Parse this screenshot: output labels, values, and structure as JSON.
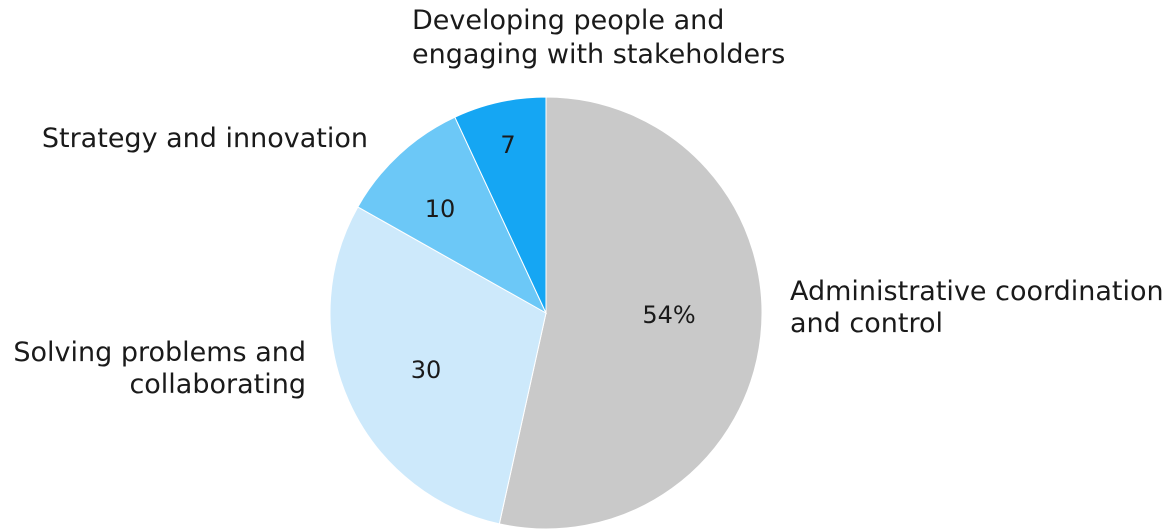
{
  "chart_data": {
    "type": "pie",
    "value_unit": "%",
    "slices": [
      {
        "label": "Administrative coordination and control",
        "label_lines": [
          "Administrative coordination",
          "and control"
        ],
        "value": 54,
        "value_label": "54%",
        "color": "#c9c9c9"
      },
      {
        "label": "Solving problems and collaborating",
        "label_lines": [
          "Solving problems and",
          "collaborating"
        ],
        "value": 30,
        "value_label": "30",
        "color": "#cde9fb"
      },
      {
        "label": "Strategy and innovation",
        "label_lines": [
          "Strategy and innovation"
        ],
        "value": 10,
        "value_label": "10",
        "color": "#6cc8f7"
      },
      {
        "label": "Developing people and engaging with stakeholders",
        "label_lines": [
          "Developing people and",
          "engaging with stakeholders"
        ],
        "value": 7,
        "value_label": "7",
        "color": "#15a6f3"
      }
    ],
    "start": "12 o'clock",
    "direction": "clockwise",
    "legend": "none"
  }
}
